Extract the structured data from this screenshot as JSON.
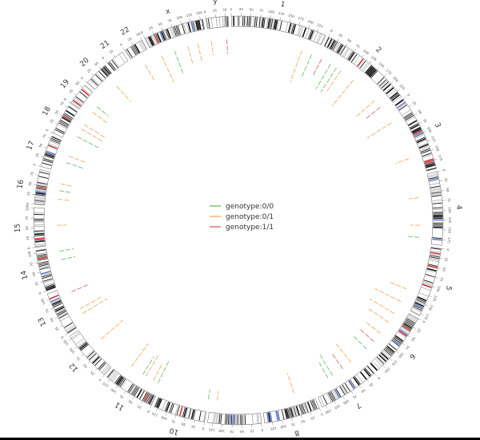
{
  "chart_data": {
    "type": "circos",
    "title": "",
    "tick_step": 25,
    "chromosomes": [
      {
        "name": "1",
        "length": 248
      },
      {
        "name": "2",
        "length": 242
      },
      {
        "name": "3",
        "length": 198
      },
      {
        "name": "4",
        "length": 190
      },
      {
        "name": "5",
        "length": 181
      },
      {
        "name": "6",
        "length": 171
      },
      {
        "name": "7",
        "length": 159
      },
      {
        "name": "8",
        "length": 145
      },
      {
        "name": "9",
        "length": 138
      },
      {
        "name": "10",
        "length": 134
      },
      {
        "name": "11",
        "length": 135
      },
      {
        "name": "12",
        "length": 133
      },
      {
        "name": "13",
        "length": 114
      },
      {
        "name": "14",
        "length": 107
      },
      {
        "name": "15",
        "length": 102
      },
      {
        "name": "16",
        "length": 90
      },
      {
        "name": "17",
        "length": 83
      },
      {
        "name": "18",
        "length": 80
      },
      {
        "name": "19",
        "length": 59
      },
      {
        "name": "20",
        "length": 64
      },
      {
        "name": "21",
        "length": 47
      },
      {
        "name": "22",
        "length": 51
      },
      {
        "name": "x",
        "length": 156
      },
      {
        "name": "y",
        "length": 57
      }
    ],
    "series": [
      {
        "name": "genotype:0/0",
        "color": "#5cb85c"
      },
      {
        "name": "genotype:0/1",
        "color": "#f0a050"
      },
      {
        "name": "genotype:1/1",
        "color": "#d9534f"
      }
    ],
    "variants": [
      {
        "chrom": "1",
        "pos": 205,
        "genotype": "genotype:0/1",
        "depth": 0.35
      },
      {
        "chrom": "1",
        "pos": 235,
        "genotype": "genotype:0/0",
        "depth": 0.25
      },
      {
        "chrom": "2",
        "pos": 10,
        "genotype": "genotype:1/1",
        "depth": 0.2
      },
      {
        "chrom": "2",
        "pos": 40,
        "genotype": "genotype:0/0",
        "depth": 0.3
      },
      {
        "chrom": "2",
        "pos": 60,
        "genotype": "genotype:0/0",
        "depth": 0.3
      },
      {
        "chrom": "2",
        "pos": 75,
        "genotype": "genotype:0/1",
        "depth": 0.25
      },
      {
        "chrom": "2",
        "pos": 120,
        "genotype": "genotype:0/1",
        "depth": 0.35
      },
      {
        "chrom": "2",
        "pos": 205,
        "genotype": "genotype:0/1",
        "depth": 0.25
      },
      {
        "chrom": "2",
        "pos": 230,
        "genotype": "genotype:1/1",
        "depth": 0.2
      },
      {
        "chrom": "3",
        "pos": 35,
        "genotype": "genotype:0/1",
        "depth": 0.3
      },
      {
        "chrom": "3",
        "pos": 150,
        "genotype": "genotype:0/1",
        "depth": 0.15
      },
      {
        "chrom": "4",
        "pos": 60,
        "genotype": "genotype:0/1",
        "depth": 0.1
      },
      {
        "chrom": "4",
        "pos": 140,
        "genotype": "genotype:0/1",
        "depth": 0.1
      },
      {
        "chrom": "4",
        "pos": 175,
        "genotype": "genotype:0/0",
        "depth": 0.12
      },
      {
        "chrom": "5",
        "pos": 130,
        "genotype": "genotype:0/1",
        "depth": 0.2
      },
      {
        "chrom": "5",
        "pos": 170,
        "genotype": "genotype:0/1",
        "depth": 0.3
      },
      {
        "chrom": "6",
        "pos": 20,
        "genotype": "genotype:0/1",
        "depth": 0.3
      },
      {
        "chrom": "6",
        "pos": 50,
        "genotype": "genotype:0/1",
        "depth": 0.25
      },
      {
        "chrom": "6",
        "pos": 90,
        "genotype": "genotype:0/1",
        "depth": 0.2
      },
      {
        "chrom": "6",
        "pos": 120,
        "genotype": "genotype:1/1",
        "depth": 0.2
      },
      {
        "chrom": "6",
        "pos": 150,
        "genotype": "genotype:0/0",
        "depth": 0.2
      },
      {
        "chrom": "7",
        "pos": 30,
        "genotype": "genotype:0/1",
        "depth": 0.25
      },
      {
        "chrom": "7",
        "pos": 60,
        "genotype": "genotype:1/1",
        "depth": 0.2
      },
      {
        "chrom": "7",
        "pos": 95,
        "genotype": "genotype:0/0",
        "depth": 0.25
      },
      {
        "chrom": "7",
        "pos": 110,
        "genotype": "genotype:0/0",
        "depth": 0.2
      },
      {
        "chrom": "8",
        "pos": 50,
        "genotype": "genotype:0/1",
        "depth": 0.22
      },
      {
        "chrom": "9",
        "pos": 120,
        "genotype": "genotype:0/1",
        "depth": 0.1
      },
      {
        "chrom": "10",
        "pos": 0,
        "genotype": "genotype:0/0",
        "depth": 0.1
      },
      {
        "chrom": "11",
        "pos": 10,
        "genotype": "genotype:0/0",
        "depth": 0.25
      },
      {
        "chrom": "11",
        "pos": 25,
        "genotype": "genotype:0/1",
        "depth": 0.2
      },
      {
        "chrom": "11",
        "pos": 50,
        "genotype": "genotype:0/1",
        "depth": 0.25
      },
      {
        "chrom": "11",
        "pos": 60,
        "genotype": "genotype:0/0",
        "depth": 0.22
      },
      {
        "chrom": "11",
        "pos": 100,
        "genotype": "genotype:0/1",
        "depth": 0.3
      },
      {
        "chrom": "12",
        "pos": 75,
        "genotype": "genotype:0/1",
        "depth": 0.3
      },
      {
        "chrom": "13",
        "pos": 25,
        "genotype": "genotype:0/1",
        "depth": 0.3
      },
      {
        "chrom": "13",
        "pos": 40,
        "genotype": "genotype:0/1",
        "depth": 0.25
      },
      {
        "chrom": "13",
        "pos": 95,
        "genotype": "genotype:1/1",
        "depth": 0.2
      },
      {
        "chrom": "14",
        "pos": 70,
        "genotype": "genotype:0/0",
        "depth": 0.15
      },
      {
        "chrom": "14",
        "pos": 95,
        "genotype": "genotype:0/0",
        "depth": 0.15
      },
      {
        "chrom": "15",
        "pos": 55,
        "genotype": "genotype:0/1",
        "depth": 0.1
      },
      {
        "chrom": "16",
        "pos": 20,
        "genotype": "genotype:0/1",
        "depth": 0.12
      },
      {
        "chrom": "16",
        "pos": 45,
        "genotype": "genotype:0/0",
        "depth": 0.12
      },
      {
        "chrom": "16",
        "pos": 65,
        "genotype": "genotype:0/1",
        "depth": 0.12
      },
      {
        "chrom": "17",
        "pos": 30,
        "genotype": "genotype:0/0",
        "depth": 0.2
      },
      {
        "chrom": "17",
        "pos": 50,
        "genotype": "genotype:0/1",
        "depth": 0.2
      },
      {
        "chrom": "18",
        "pos": 20,
        "genotype": "genotype:0/0",
        "depth": 0.25
      },
      {
        "chrom": "18",
        "pos": 45,
        "genotype": "genotype:0/1",
        "depth": 0.25
      },
      {
        "chrom": "18",
        "pos": 60,
        "genotype": "genotype:0/1",
        "depth": 0.25
      },
      {
        "chrom": "19",
        "pos": 15,
        "genotype": "genotype:0/1",
        "depth": 0.2
      },
      {
        "chrom": "19",
        "pos": 35,
        "genotype": "genotype:0/0",
        "depth": 0.15
      },
      {
        "chrom": "20",
        "pos": 50,
        "genotype": "genotype:0/1",
        "depth": 0.22
      },
      {
        "chrom": "22",
        "pos": 25,
        "genotype": "genotype:0/1",
        "depth": 0.2
      },
      {
        "chrom": "x",
        "pos": 20,
        "genotype": "genotype:0/1",
        "depth": 0.3
      },
      {
        "chrom": "x",
        "pos": 60,
        "genotype": "genotype:0/0",
        "depth": 0.25
      },
      {
        "chrom": "x",
        "pos": 100,
        "genotype": "genotype:0/1",
        "depth": 0.2
      },
      {
        "chrom": "x",
        "pos": 130,
        "genotype": "genotype:0/1",
        "depth": 0.2
      },
      {
        "chrom": "y",
        "pos": 5,
        "genotype": "genotype:0/1",
        "depth": 0.15
      },
      {
        "chrom": "y",
        "pos": 50,
        "genotype": "genotype:1/1",
        "depth": 0.15
      }
    ],
    "legend": {
      "placement": "center",
      "entries": [
        "genotype:0/0",
        "genotype:0/1",
        "genotype:1/1"
      ]
    }
  }
}
